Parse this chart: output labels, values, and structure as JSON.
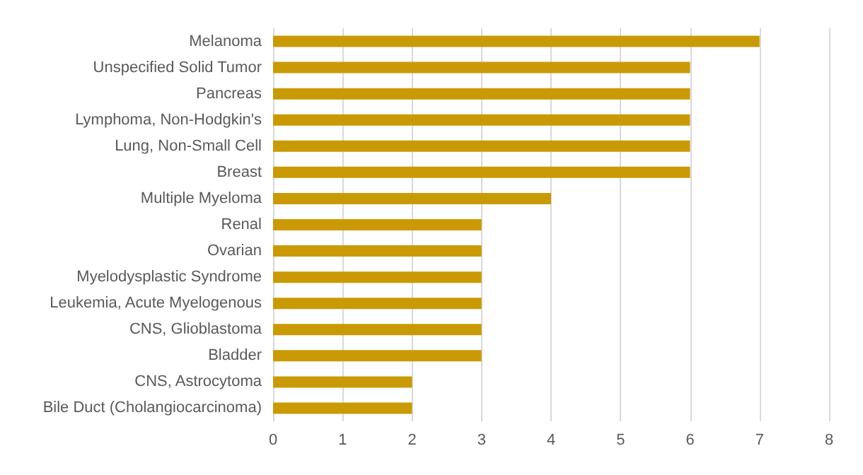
{
  "chart_data": {
    "type": "bar",
    "orientation": "horizontal",
    "categories": [
      "Melanoma",
      "Unspecified Solid Tumor",
      "Pancreas",
      "Lymphoma, Non-Hodgkin's",
      "Lung, Non-Small Cell",
      "Breast",
      "Multiple Myeloma",
      "Renal",
      "Ovarian",
      "Myelodysplastic Syndrome",
      "Leukemia, Acute Myelogenous",
      "CNS, Glioblastoma",
      "Bladder",
      "CNS, Astrocytoma",
      "Bile Duct (Cholangiocarcinoma)"
    ],
    "values": [
      7,
      6,
      6,
      6,
      6,
      6,
      4,
      3,
      3,
      3,
      3,
      3,
      3,
      2,
      2
    ],
    "color": "#c99a06",
    "xlim": [
      0,
      8
    ],
    "xticks": [
      0,
      1,
      2,
      3,
      4,
      5,
      6,
      7,
      8
    ],
    "grid": "x"
  }
}
